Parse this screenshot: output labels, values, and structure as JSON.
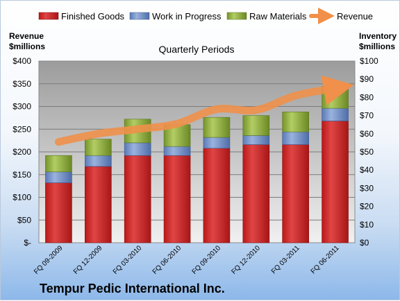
{
  "chart_data": {
    "type": "bar",
    "stacked": true,
    "title": "Quarterly Periods",
    "footer": "Tempur Pedic International Inc.",
    "ylabel_left": [
      "Revenue",
      "$millions"
    ],
    "ylabel_right": [
      "Inventory",
      "$millions"
    ],
    "categories": [
      "FQ 09-2009",
      "FQ 12-2009",
      "FQ 03-2010",
      "FQ 06-2010",
      "FQ 09-2010",
      "FQ 12-2010",
      "FQ 03-2011",
      "FQ 06-2011"
    ],
    "series": [
      {
        "name": "Finished Goods",
        "axis": "right",
        "color": "#d42828",
        "values": [
          33,
          42,
          48,
          48,
          52,
          54,
          54,
          67
        ]
      },
      {
        "name": "Work in Progress",
        "axis": "right",
        "color": "#6f8fc9",
        "values": [
          6,
          6,
          7,
          5,
          6,
          5,
          7,
          7
        ]
      },
      {
        "name": "Raw Materials",
        "axis": "right",
        "color": "#8dad3a",
        "values": [
          9,
          9,
          13,
          12,
          11,
          11,
          11,
          12
        ]
      },
      {
        "name": "Revenue",
        "axis": "left",
        "type": "line",
        "color": "#f0904a",
        "values": [
          222,
          240,
          250,
          262,
          294,
          292,
          324,
          340
        ]
      }
    ],
    "left_axis": {
      "min": 0,
      "max": 400,
      "ticks": [
        "$-",
        "$50",
        "$100",
        "$150",
        "$200",
        "$250",
        "$300",
        "$350",
        "$400"
      ]
    },
    "right_axis": {
      "min": 0,
      "max": 100,
      "ticks": [
        "$0",
        "$10",
        "$20",
        "$30",
        "$40",
        "$50",
        "$60",
        "$70",
        "$80",
        "$90",
        "$100"
      ]
    },
    "legend_position": "top",
    "grid": true
  }
}
